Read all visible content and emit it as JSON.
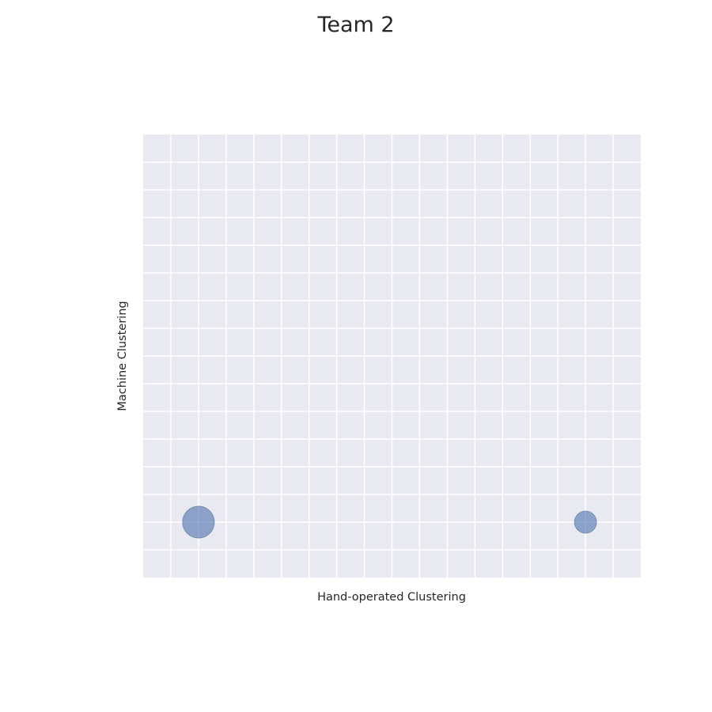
{
  "chart_data": {
    "type": "scatter",
    "title": "Team 2",
    "xlabel": "Hand-operated Clustering",
    "ylabel": "Machine Clustering",
    "xlim": [
      0,
      18
    ],
    "ylim": [
      0,
      16
    ],
    "x_gridlines": [
      1,
      2,
      3,
      4,
      5,
      6,
      7,
      8,
      9,
      10,
      11,
      12,
      13,
      14,
      15,
      16,
      17
    ],
    "y_gridlines": [
      1,
      2,
      3,
      4,
      5,
      6,
      7,
      8,
      9,
      10,
      11,
      12,
      13,
      14,
      15
    ],
    "tick_labels_visible": false,
    "grid": true,
    "background": "#e9e9f1",
    "gridline_color": "#ffffff",
    "point_color": "#4c72b0",
    "point_opacity": 0.6,
    "points": [
      {
        "x": 2,
        "y": 2,
        "size": 3
      },
      {
        "x": 16,
        "y": 2,
        "size": 1
      }
    ]
  }
}
